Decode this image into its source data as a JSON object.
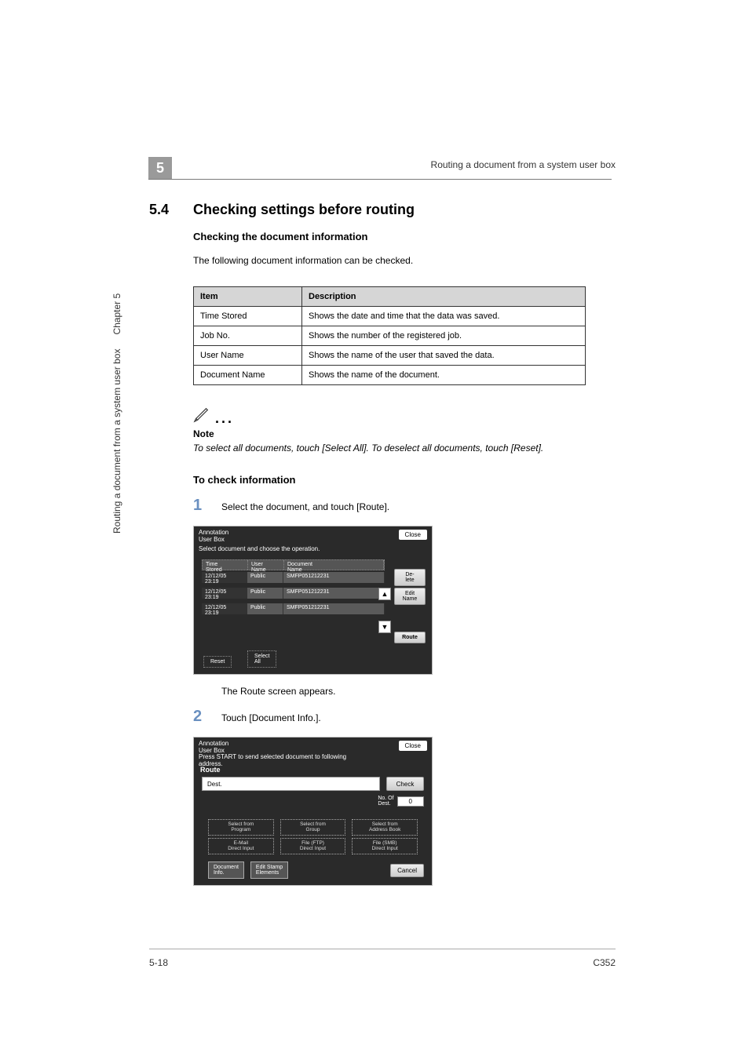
{
  "chapter_number": "5",
  "header_right": "Routing a document from a system user box",
  "section": {
    "number": "5.4",
    "title": "Checking settings before routing"
  },
  "subsection_title": "Checking the document information",
  "intro_text": "The following document information can be checked.",
  "info_table": {
    "columns": [
      "Item",
      "Description"
    ],
    "rows": [
      [
        "Time Stored",
        "Shows the date and time that the data was saved."
      ],
      [
        "Job No.",
        "Shows the number of the registered job."
      ],
      [
        "User Name",
        "Shows the name of the user that saved the data."
      ],
      [
        "Document Name",
        "Shows the name of the document."
      ]
    ]
  },
  "note": {
    "label": "Note",
    "text": "To select all documents, touch [Select All]. To deselect all documents, touch [Reset]."
  },
  "check_info_heading": "To check information",
  "steps": {
    "s1": {
      "num": "1",
      "text": "Select the document, and touch [Route].",
      "sub": "The Route screen appears."
    },
    "s2": {
      "num": "2",
      "text": "Touch [Document Info.]."
    }
  },
  "screenshot1": {
    "title_line1": "Annotation",
    "title_line2": "User Box",
    "subtitle": "Select document and choose the operation.",
    "close": "Close",
    "columns": {
      "time": "Time\nStored",
      "user": "User\nName",
      "doc": "Document\nName"
    },
    "rows": [
      {
        "time": "12/12/05\n23:19",
        "user": "Public",
        "doc": "SMFP051212231"
      },
      {
        "time": "12/12/05\n23:19",
        "user": "Public",
        "doc": "SMFP051212231"
      },
      {
        "time": "12/12/05\n23:19",
        "user": "Public",
        "doc": "SMFP051212231"
      }
    ],
    "buttons": {
      "delete": "De-\nlete",
      "edit": "Edit\nName",
      "route": "Route"
    },
    "bottom": {
      "reset": "Reset",
      "select_all": "Select\nAll"
    }
  },
  "screenshot2": {
    "title_line1": "Annotation",
    "title_line2": "User Box",
    "subtitle": "Press START to send selected document to following address.",
    "close": "Close",
    "route_label": "Route",
    "dest_label": "Dest.",
    "check": "Check",
    "noof_label": "No. Of\nDest.",
    "noof_value": "0",
    "row1": {
      "a": "Select from\nProgram",
      "b": "Select from\nGroup",
      "c": "Select from\nAddress Book"
    },
    "row2": {
      "a": "E-Mail\nDirect Input",
      "b": "File (FTP)\nDirect Input",
      "c": "File (SMB)\nDirect Input"
    },
    "bottom": {
      "docinfo": "Document\nInfo.",
      "editstamp": "Edit Stamp\nElements",
      "cancel": "Cancel"
    }
  },
  "side": {
    "main": "Routing a document from a system user box",
    "chapter": "Chapter 5"
  },
  "footer": {
    "page": "5-18",
    "model": "C352"
  }
}
